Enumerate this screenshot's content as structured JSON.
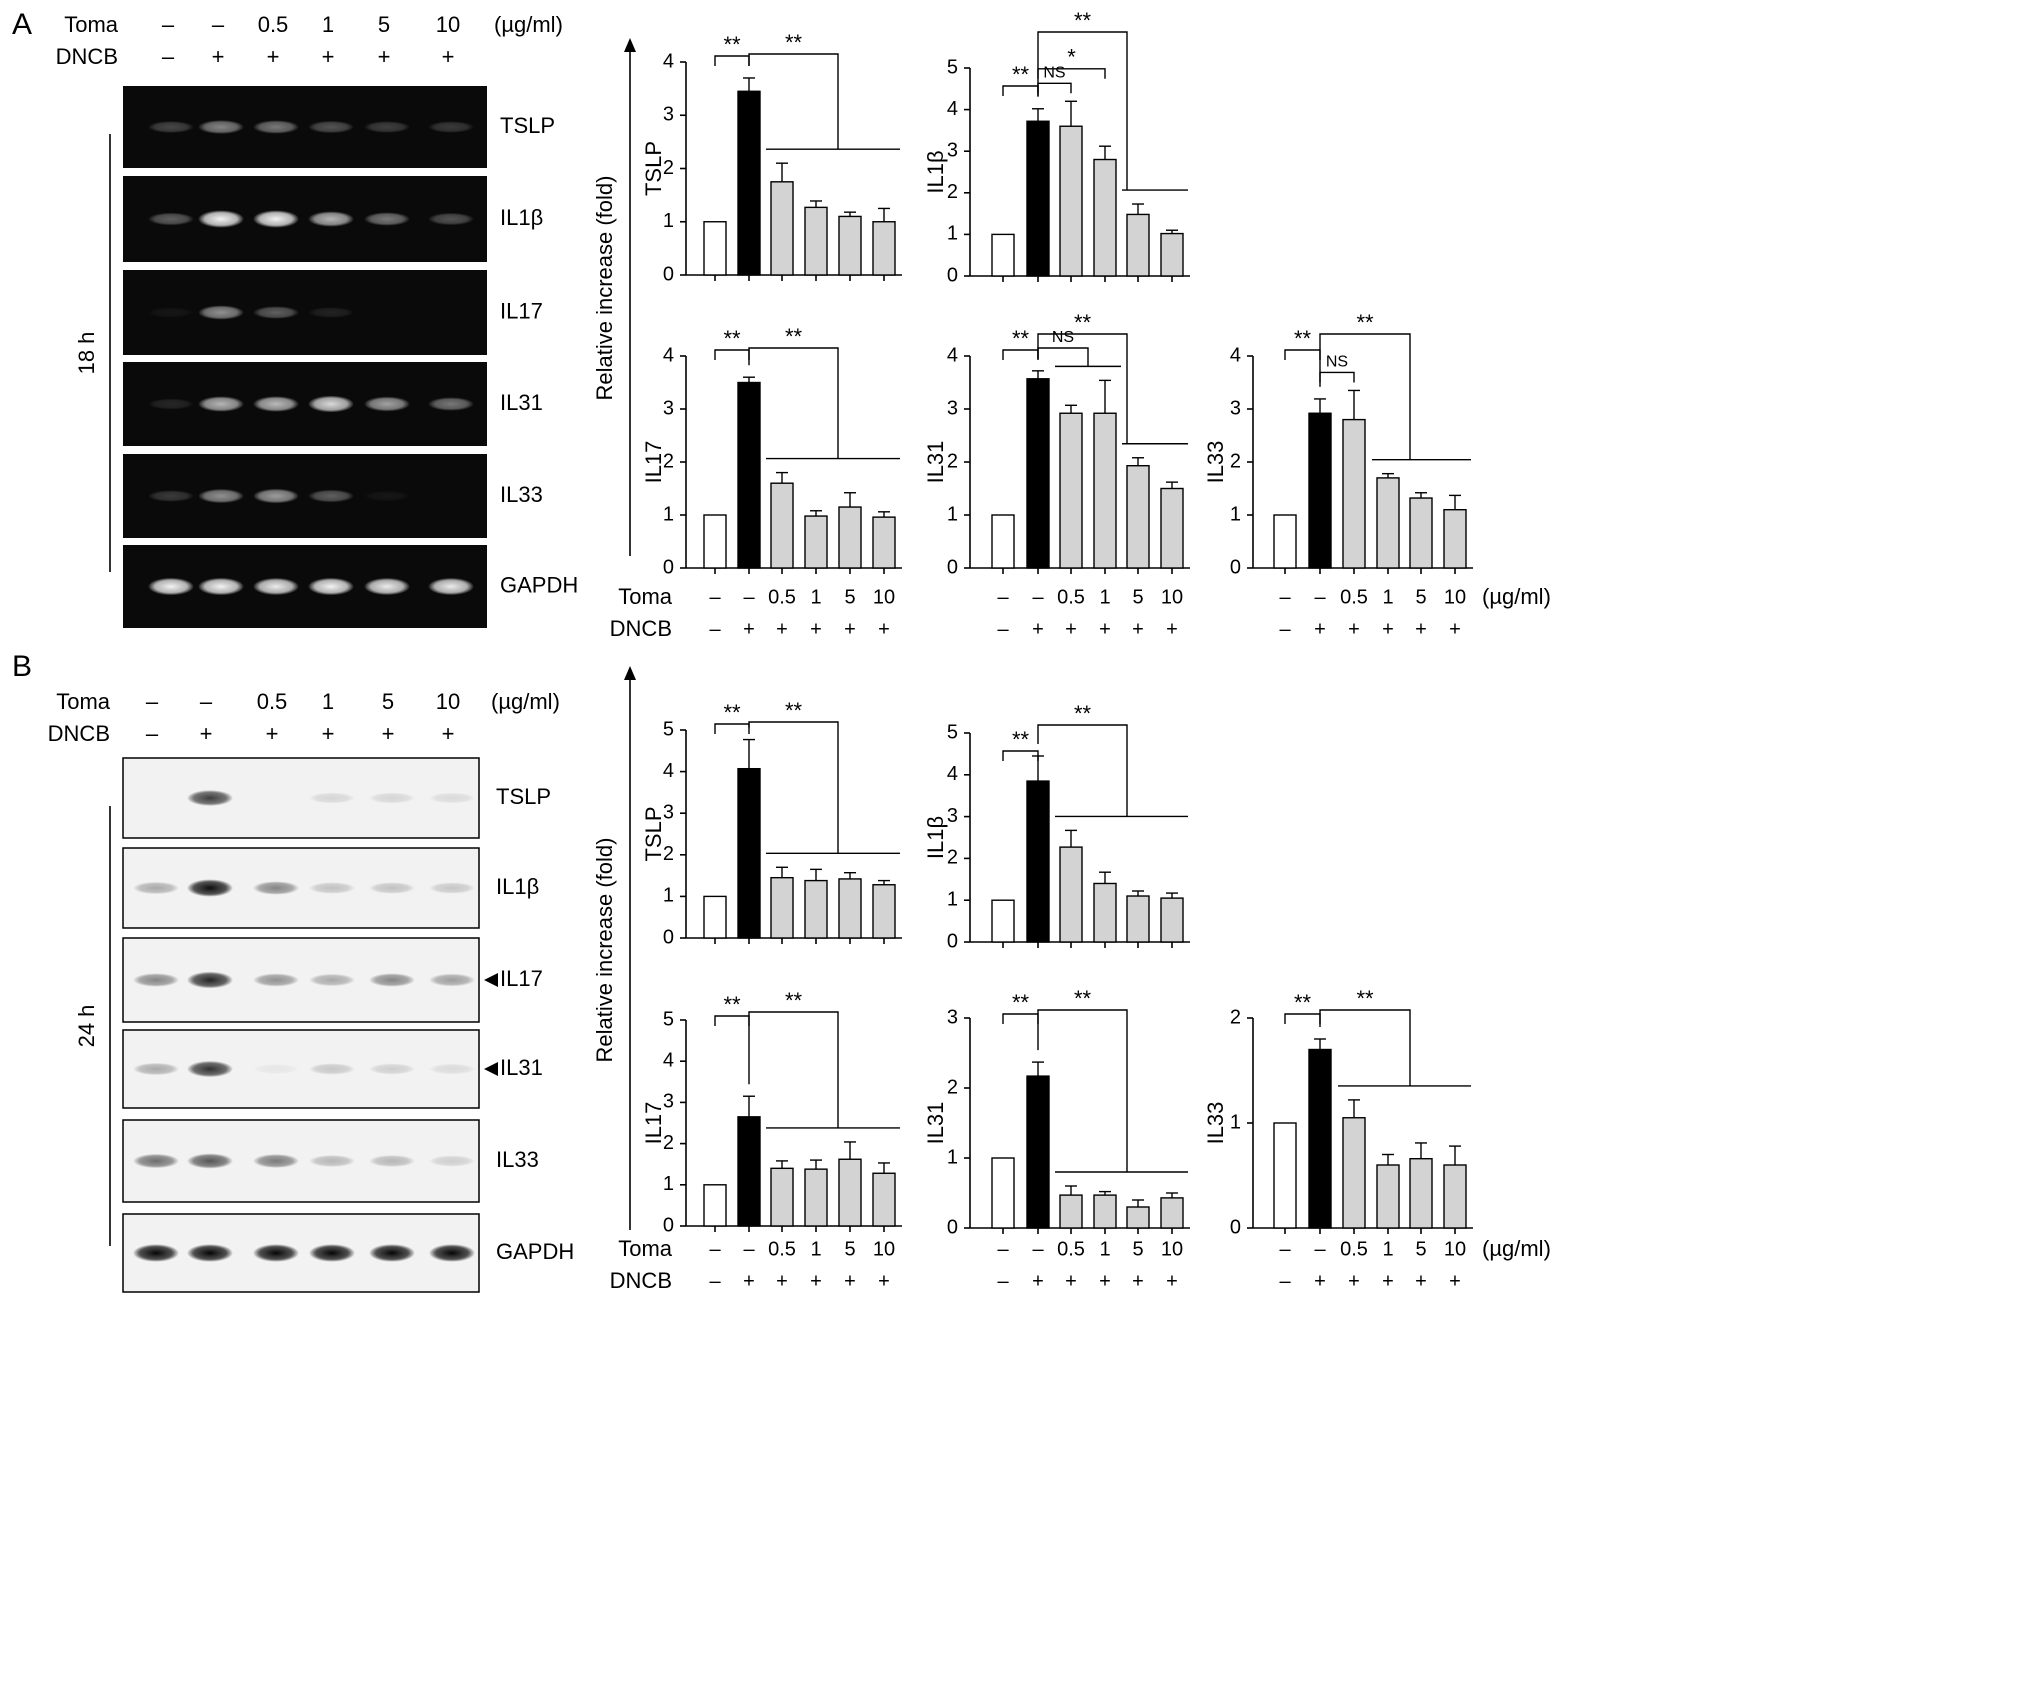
{
  "panels": [
    {
      "letter": "A",
      "time_label": "18 h",
      "header_rows": [
        {
          "name": "Toma",
          "values": [
            "–",
            "–",
            "0.5",
            "1",
            "5",
            "10"
          ],
          "unit": "(µg/ml)"
        },
        {
          "name": "DNCB",
          "values": [
            "–",
            "+",
            "+",
            "+",
            "+",
            "+"
          ]
        }
      ],
      "blot": {
        "style": "dark",
        "rows": [
          {
            "label": "TSLP",
            "intensities": [
              0.25,
              0.5,
              0.45,
              0.3,
              0.22,
              0.2
            ]
          },
          {
            "label": "IL1β",
            "intensities": [
              0.35,
              0.95,
              0.95,
              0.7,
              0.45,
              0.3
            ]
          },
          {
            "label": "IL17",
            "intensities": [
              0.05,
              0.55,
              0.35,
              0.1,
              0.0,
              0.0
            ]
          },
          {
            "label": "IL31",
            "intensities": [
              0.12,
              0.7,
              0.72,
              0.85,
              0.62,
              0.45
            ]
          },
          {
            "label": "IL33",
            "intensities": [
              0.2,
              0.55,
              0.6,
              0.35,
              0.05,
              0.0
            ]
          },
          {
            "label": "GAPDH",
            "intensities": [
              0.95,
              0.95,
              0.92,
              0.95,
              0.92,
              0.92
            ]
          }
        ]
      },
      "y_title": "Relative increase (fold)",
      "axis_rows": [
        {
          "name": "Toma",
          "values": [
            "–",
            "–",
            "0.5",
            "1",
            "5",
            "10"
          ],
          "unit": "(µg/ml)"
        },
        {
          "name": "DNCB",
          "values": [
            "–",
            "+",
            "+",
            "+",
            "+",
            "+"
          ]
        }
      ]
    },
    {
      "letter": "B",
      "time_label": "24 h",
      "header_rows": [
        {
          "name": "Toma",
          "values": [
            "–",
            "–",
            "0.5",
            "1",
            "5",
            "10"
          ],
          "unit": "(µg/ml)"
        },
        {
          "name": "DNCB",
          "values": [
            "–",
            "+",
            "+",
            "+",
            "+",
            "+"
          ]
        }
      ],
      "blot": {
        "style": "light",
        "rows": [
          {
            "label": "TSLP",
            "intensities": [
              0.0,
              0.75,
              0.0,
              0.12,
              0.12,
              0.1
            ]
          },
          {
            "label": "IL1β",
            "intensities": [
              0.3,
              0.95,
              0.45,
              0.2,
              0.2,
              0.18
            ]
          },
          {
            "label": "IL17",
            "intensities": [
              0.45,
              0.85,
              0.4,
              0.3,
              0.45,
              0.35
            ],
            "arrow": true
          },
          {
            "label": "IL31",
            "intensities": [
              0.3,
              0.8,
              0.05,
              0.18,
              0.15,
              0.1
            ],
            "arrow": true
          },
          {
            "label": "IL33",
            "intensities": [
              0.55,
              0.65,
              0.5,
              0.25,
              0.25,
              0.15
            ]
          },
          {
            "label": "GAPDH",
            "intensities": [
              0.98,
              0.98,
              0.98,
              0.98,
              0.98,
              0.98
            ]
          }
        ]
      },
      "y_title": "Relative increase (fold)",
      "axis_rows": [
        {
          "name": "Toma",
          "values": [
            "–",
            "–",
            "0.5",
            "1",
            "5",
            "10"
          ],
          "unit": "(µg/ml)"
        },
        {
          "name": "DNCB",
          "values": [
            "–",
            "+",
            "+",
            "+",
            "+",
            "+"
          ]
        }
      ]
    }
  ],
  "chart_data": [
    {
      "panel": "A",
      "type": "bar",
      "ylabel": "TSLP",
      "ylim": [
        0,
        4
      ],
      "yticks": [
        0,
        1,
        2,
        3,
        4
      ],
      "categories": [
        "–/–",
        "–/+",
        "0.5/+",
        "1/+",
        "5/+",
        "10/+"
      ],
      "values": [
        1.0,
        3.45,
        1.75,
        1.27,
        1.1,
        1.0
      ],
      "errors": [
        0,
        0.25,
        0.35,
        0.12,
        0.08,
        0.25
      ],
      "bar_colors": [
        "#ffffff",
        "#000000",
        "#d3d3d3",
        "#d3d3d3",
        "#d3d3d3",
        "#d3d3d3"
      ],
      "significance": [
        {
          "type": "pair",
          "from": 0,
          "to": 1,
          "label": "**"
        },
        {
          "type": "group",
          "from": 1,
          "group": [
            2,
            5
          ],
          "label": "**"
        }
      ]
    },
    {
      "panel": "A",
      "type": "bar",
      "ylabel": "IL1β",
      "ylim": [
        0,
        5
      ],
      "yticks": [
        0,
        1,
        2,
        3,
        4,
        5
      ],
      "categories": [
        "–/–",
        "–/+",
        "0.5/+",
        "1/+",
        "5/+",
        "10/+"
      ],
      "values": [
        1.0,
        3.72,
        3.6,
        2.8,
        1.48,
        1.02
      ],
      "errors": [
        0,
        0.3,
        0.6,
        0.32,
        0.25,
        0.08
      ],
      "bar_colors": [
        "#ffffff",
        "#000000",
        "#d3d3d3",
        "#d3d3d3",
        "#d3d3d3",
        "#d3d3d3"
      ],
      "significance": [
        {
          "type": "pair",
          "from": 0,
          "to": 1,
          "label": "**"
        },
        {
          "type": "pair",
          "from": 1,
          "to": 2,
          "label": "NS"
        },
        {
          "type": "pair",
          "from": 1,
          "to": 3,
          "label": "*"
        },
        {
          "type": "group",
          "from": 1,
          "group": [
            4,
            5
          ],
          "label": "**"
        }
      ]
    },
    {
      "panel": "A",
      "type": "bar",
      "ylabel": "IL17",
      "ylim": [
        0,
        4
      ],
      "yticks": [
        0,
        1,
        2,
        3,
        4
      ],
      "categories": [
        "–/–",
        "–/+",
        "0.5/+",
        "1/+",
        "5/+",
        "10/+"
      ],
      "values": [
        1.0,
        3.5,
        1.6,
        0.98,
        1.15,
        0.96
      ],
      "errors": [
        0,
        0.1,
        0.2,
        0.1,
        0.27,
        0.1
      ],
      "bar_colors": [
        "#ffffff",
        "#000000",
        "#d3d3d3",
        "#d3d3d3",
        "#d3d3d3",
        "#d3d3d3"
      ],
      "significance": [
        {
          "type": "pair",
          "from": 0,
          "to": 1,
          "label": "**"
        },
        {
          "type": "group",
          "from": 1,
          "group": [
            2,
            5
          ],
          "label": "**"
        }
      ]
    },
    {
      "panel": "A",
      "type": "bar",
      "ylabel": "IL31",
      "ylim": [
        0,
        4
      ],
      "yticks": [
        0,
        1,
        2,
        3,
        4
      ],
      "categories": [
        "–/–",
        "–/+",
        "0.5/+",
        "1/+",
        "5/+",
        "10/+"
      ],
      "values": [
        1.0,
        3.57,
        2.92,
        2.92,
        1.93,
        1.5
      ],
      "errors": [
        0,
        0.15,
        0.15,
        0.62,
        0.15,
        0.12
      ],
      "bar_colors": [
        "#ffffff",
        "#000000",
        "#d3d3d3",
        "#d3d3d3",
        "#d3d3d3",
        "#d3d3d3"
      ],
      "significance": [
        {
          "type": "pair",
          "from": 0,
          "to": 1,
          "label": "**"
        },
        {
          "type": "group",
          "from": 1,
          "group": [
            2,
            3
          ],
          "label": "NS"
        },
        {
          "type": "group",
          "from": 1,
          "group": [
            4,
            5
          ],
          "label": "**"
        }
      ]
    },
    {
      "panel": "A",
      "type": "bar",
      "ylabel": "IL33",
      "ylim": [
        0,
        4
      ],
      "yticks": [
        0,
        1,
        2,
        3,
        4
      ],
      "categories": [
        "–/–",
        "–/+",
        "0.5/+",
        "1/+",
        "5/+",
        "10/+"
      ],
      "values": [
        1.0,
        2.92,
        2.8,
        1.7,
        1.32,
        1.1
      ],
      "errors": [
        0,
        0.27,
        0.55,
        0.08,
        0.1,
        0.27
      ],
      "bar_colors": [
        "#ffffff",
        "#000000",
        "#d3d3d3",
        "#d3d3d3",
        "#d3d3d3",
        "#d3d3d3"
      ],
      "significance": [
        {
          "type": "pair",
          "from": 0,
          "to": 1,
          "label": "**"
        },
        {
          "type": "pair",
          "from": 1,
          "to": 2,
          "label": "NS"
        },
        {
          "type": "group",
          "from": 1,
          "group": [
            3,
            5
          ],
          "label": "**"
        }
      ]
    },
    {
      "panel": "B",
      "type": "bar",
      "ylabel": "TSLP",
      "ylim": [
        0,
        5
      ],
      "yticks": [
        0,
        1,
        2,
        3,
        4,
        5
      ],
      "categories": [
        "–/–",
        "–/+",
        "0.5/+",
        "1/+",
        "5/+",
        "10/+"
      ],
      "values": [
        1.0,
        4.07,
        1.45,
        1.38,
        1.42,
        1.28
      ],
      "errors": [
        0,
        0.7,
        0.25,
        0.27,
        0.15,
        0.1
      ],
      "bar_colors": [
        "#ffffff",
        "#000000",
        "#d3d3d3",
        "#d3d3d3",
        "#d3d3d3",
        "#d3d3d3"
      ],
      "significance": [
        {
          "type": "pair",
          "from": 0,
          "to": 1,
          "label": "**"
        },
        {
          "type": "group",
          "from": 1,
          "group": [
            2,
            5
          ],
          "label": "**"
        }
      ]
    },
    {
      "panel": "B",
      "type": "bar",
      "ylabel": "IL1β",
      "ylim": [
        0,
        5
      ],
      "yticks": [
        0,
        1,
        2,
        3,
        4,
        5
      ],
      "categories": [
        "–/–",
        "–/+",
        "0.5/+",
        "1/+",
        "5/+",
        "10/+"
      ],
      "values": [
        1.0,
        3.85,
        2.27,
        1.4,
        1.1,
        1.05
      ],
      "errors": [
        0,
        0.6,
        0.4,
        0.27,
        0.12,
        0.12
      ],
      "bar_colors": [
        "#ffffff",
        "#000000",
        "#d3d3d3",
        "#d3d3d3",
        "#d3d3d3",
        "#d3d3d3"
      ],
      "significance": [
        {
          "type": "pair",
          "from": 0,
          "to": 1,
          "label": "**"
        },
        {
          "type": "group",
          "from": 1,
          "group": [
            2,
            5
          ],
          "label": "**"
        }
      ]
    },
    {
      "panel": "B",
      "type": "bar",
      "ylabel": "IL17",
      "ylim": [
        0,
        5
      ],
      "yticks": [
        0,
        1,
        2,
        3,
        4,
        5
      ],
      "categories": [
        "–/–",
        "–/+",
        "0.5/+",
        "1/+",
        "5/+",
        "10/+"
      ],
      "values": [
        1.0,
        2.65,
        1.4,
        1.38,
        1.62,
        1.28
      ],
      "errors": [
        0,
        0.5,
        0.18,
        0.22,
        0.42,
        0.25
      ],
      "bar_colors": [
        "#ffffff",
        "#000000",
        "#d3d3d3",
        "#d3d3d3",
        "#d3d3d3",
        "#d3d3d3"
      ],
      "significance": [
        {
          "type": "pair",
          "from": 0,
          "to": 1,
          "label": "**"
        },
        {
          "type": "group",
          "from": 1,
          "group": [
            2,
            5
          ],
          "label": "**"
        }
      ]
    },
    {
      "panel": "B",
      "type": "bar",
      "ylabel": "IL31",
      "ylim": [
        0,
        3
      ],
      "yticks": [
        0,
        1,
        2,
        3
      ],
      "categories": [
        "–/–",
        "–/+",
        "0.5/+",
        "1/+",
        "5/+",
        "10/+"
      ],
      "values": [
        1.0,
        2.17,
        0.47,
        0.47,
        0.3,
        0.43
      ],
      "errors": [
        0,
        0.2,
        0.13,
        0.05,
        0.1,
        0.07
      ],
      "bar_colors": [
        "#ffffff",
        "#000000",
        "#d3d3d3",
        "#d3d3d3",
        "#d3d3d3",
        "#d3d3d3"
      ],
      "significance": [
        {
          "type": "pair",
          "from": 0,
          "to": 1,
          "label": "**"
        },
        {
          "type": "group",
          "from": 1,
          "group": [
            2,
            5
          ],
          "label": "**"
        }
      ]
    },
    {
      "panel": "B",
      "type": "bar",
      "ylabel": "IL33",
      "ylim": [
        0,
        2
      ],
      "yticks": [
        0,
        1,
        2
      ],
      "categories": [
        "–/–",
        "–/+",
        "0.5/+",
        "1/+",
        "5/+",
        "10/+"
      ],
      "values": [
        1.0,
        1.7,
        1.05,
        0.6,
        0.66,
        0.6
      ],
      "errors": [
        0,
        0.1,
        0.17,
        0.1,
        0.15,
        0.18
      ],
      "bar_colors": [
        "#ffffff",
        "#000000",
        "#d3d3d3",
        "#d3d3d3",
        "#d3d3d3",
        "#d3d3d3"
      ],
      "significance": [
        {
          "type": "pair",
          "from": 0,
          "to": 1,
          "label": "**"
        },
        {
          "type": "group",
          "from": 1,
          "group": [
            2,
            5
          ],
          "label": "**"
        }
      ]
    }
  ]
}
